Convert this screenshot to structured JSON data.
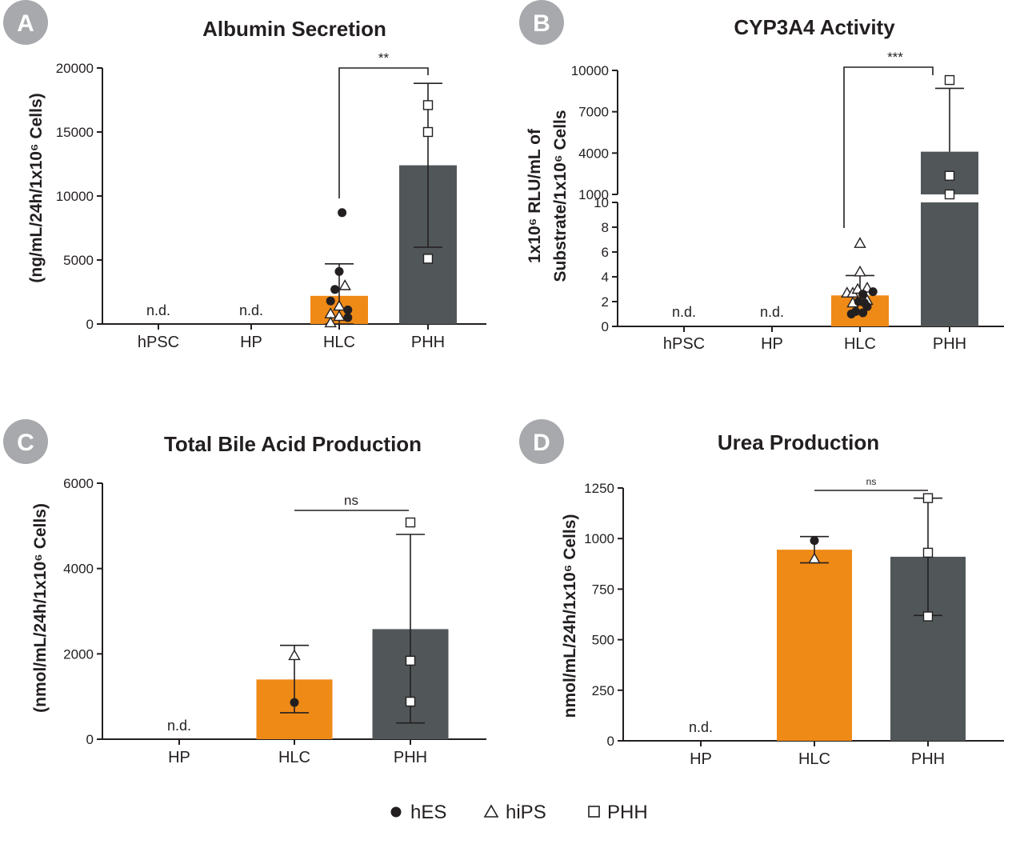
{
  "colors": {
    "orange": "#ef8a17",
    "dark": "#515759",
    "axis": "#231f20",
    "badge": "#a7a9ac"
  },
  "legend": [
    {
      "marker": "circle",
      "label": "hES"
    },
    {
      "marker": "triangle",
      "label": "hiPS"
    },
    {
      "marker": "square",
      "label": "PHH"
    }
  ],
  "nd_label": "n.d.",
  "chart_data": [
    {
      "panel": "A",
      "type": "bar",
      "title": "Albumin Secretion",
      "ylabel": "(ng/mL/24h/1x10⁶ Cells)",
      "categories": [
        "hPSC",
        "HP",
        "HLC",
        "PHH"
      ],
      "ylim": [
        0,
        20000
      ],
      "yticks": [
        0,
        5000,
        10000,
        15000,
        20000
      ],
      "ytick_labels": [
        "0",
        "5000",
        "10000",
        "15000",
        "20000"
      ],
      "bars": [
        {
          "category": "hPSC",
          "value": null,
          "nd": true
        },
        {
          "category": "HP",
          "value": null,
          "nd": true
        },
        {
          "category": "HLC",
          "value": 2200,
          "err_low": 0,
          "err_high": 4700,
          "color": "orange",
          "points": [
            {
              "marker": "circle",
              "value": 8700,
              "dx": 0.1
            },
            {
              "marker": "circle",
              "value": 4100,
              "dx": 0
            },
            {
              "marker": "circle",
              "value": 2700,
              "dx": -0.15
            },
            {
              "marker": "circle",
              "value": 1800,
              "dx": -0.3
            },
            {
              "marker": "circle",
              "value": 1100,
              "dx": 0.3
            },
            {
              "marker": "circle",
              "value": 500,
              "dx": 0.3
            },
            {
              "marker": "triangle",
              "value": 3000,
              "dx": 0.2
            },
            {
              "marker": "triangle",
              "value": 1400,
              "dx": 0
            },
            {
              "marker": "triangle",
              "value": 800,
              "dx": -0.3
            },
            {
              "marker": "triangle",
              "value": 600,
              "dx": 0
            },
            {
              "marker": "triangle",
              "value": 100,
              "dx": -0.3
            }
          ]
        },
        {
          "category": "PHH",
          "value": 12400,
          "err_low": 6000,
          "err_high": 18800,
          "color": "dark",
          "points": [
            {
              "marker": "square",
              "value": 17100,
              "dx": 0
            },
            {
              "marker": "square",
              "value": 15000,
              "dx": 0
            },
            {
              "marker": "square",
              "value": 5100,
              "dx": 0
            }
          ]
        }
      ],
      "significance": {
        "from": "HLC",
        "to": "PHH",
        "label": "**"
      }
    },
    {
      "panel": "B",
      "type": "bar",
      "title": "CYP3A4 Activity",
      "ylabel_lines": [
        "1x10⁶ RLU/mL of",
        "Substrate/1x10⁶ Cells"
      ],
      "categories": [
        "hPSC",
        "HP",
        "HLC",
        "PHH"
      ],
      "y_lower": {
        "ylim": [
          0,
          10
        ],
        "ticks": [
          0,
          2,
          4,
          6,
          8,
          10
        ]
      },
      "y_upper": {
        "ylim": [
          1000,
          10000
        ],
        "ticks": [
          1000,
          4000,
          7000,
          10000
        ]
      },
      "bars": [
        {
          "category": "hPSC",
          "value": null,
          "nd": true
        },
        {
          "category": "HP",
          "value": null,
          "nd": true
        },
        {
          "category": "HLC",
          "value": 2.5,
          "err_low": 2.5,
          "err_high": 4.1,
          "color": "orange",
          "points": [
            {
              "marker": "triangle",
              "value": 6.7,
              "dx": 0
            },
            {
              "marker": "triangle",
              "value": 4.4,
              "dx": 0
            },
            {
              "marker": "triangle",
              "value": 3.1,
              "dx": 0.25
            },
            {
              "marker": "triangle",
              "value": 2.7,
              "dx": -0.45
            },
            {
              "marker": "triangle",
              "value": 2.7,
              "dx": -0.25
            },
            {
              "marker": "triangle",
              "value": 3.0,
              "dx": -0.08
            },
            {
              "marker": "triangle",
              "value": 2.1,
              "dx": 0.25
            },
            {
              "marker": "triangle",
              "value": 1.9,
              "dx": -0.25
            },
            {
              "marker": "circle",
              "value": 2.8,
              "dx": 0.45
            },
            {
              "marker": "circle",
              "value": 2.6,
              "dx": 0.1
            },
            {
              "marker": "circle",
              "value": 2.0,
              "dx": -0.05
            },
            {
              "marker": "circle",
              "value": 1.9,
              "dx": 0.15
            },
            {
              "marker": "circle",
              "value": 1.6,
              "dx": 0.25
            },
            {
              "marker": "circle",
              "value": 1.2,
              "dx": -0.15
            },
            {
              "marker": "circle",
              "value": 1.0,
              "dx": -0.3
            },
            {
              "marker": "circle",
              "value": 1.1,
              "dx": 0.1
            }
          ]
        },
        {
          "category": "PHH",
          "value": 4100,
          "err_low": 4100,
          "err_high": 8700,
          "color": "dark",
          "points": [
            {
              "marker": "square",
              "value": 9300,
              "dx": 0
            },
            {
              "marker": "square",
              "value": 2350,
              "dx": 0
            },
            {
              "marker": "square",
              "value": 1000,
              "dx": 0
            }
          ]
        }
      ],
      "significance": {
        "from": "HLC",
        "to": "PHH",
        "label": "***"
      }
    },
    {
      "panel": "C",
      "type": "bar",
      "title": "Total Bile Acid Production",
      "ylabel": "(nmol/mL/24h/1x10⁶ Cells)",
      "categories": [
        "HP",
        "HLC",
        "PHH"
      ],
      "ylim": [
        0,
        6000
      ],
      "yticks": [
        0,
        2000,
        4000,
        6000
      ],
      "ytick_labels": [
        "0",
        "2000",
        "4000",
        "6000"
      ],
      "bars": [
        {
          "category": "HP",
          "value": null,
          "nd": true
        },
        {
          "category": "HLC",
          "value": 1400,
          "err_low": 620,
          "err_high": 2200,
          "color": "orange",
          "points": [
            {
              "marker": "triangle",
              "value": 1960,
              "dx": 0
            },
            {
              "marker": "circle",
              "value": 860,
              "dx": 0
            }
          ]
        },
        {
          "category": "PHH",
          "value": 2580,
          "err_low": 380,
          "err_high": 4800,
          "color": "dark",
          "points": [
            {
              "marker": "square",
              "value": 5080,
              "dx": 0
            },
            {
              "marker": "square",
              "value": 1840,
              "dx": 0
            },
            {
              "marker": "square",
              "value": 880,
              "dx": 0
            }
          ]
        }
      ],
      "significance": {
        "from": "HLC",
        "to": "PHH",
        "label": "ns"
      }
    },
    {
      "panel": "D",
      "type": "bar",
      "title": "Urea Production",
      "ylabel": "nmol/mL/24h/1x10⁶ Cells)",
      "categories": [
        "HP",
        "HLC",
        "PHH"
      ],
      "ylim": [
        0,
        1250
      ],
      "yticks": [
        0,
        250,
        500,
        750,
        1000,
        1250
      ],
      "ytick_labels": [
        "0",
        "250",
        "500",
        "750",
        "1000",
        "1250"
      ],
      "bars": [
        {
          "category": "HP",
          "value": null,
          "nd": true
        },
        {
          "category": "HLC",
          "value": 945,
          "err_low": 880,
          "err_high": 1010,
          "color": "orange",
          "points": [
            {
              "marker": "circle",
              "value": 990,
              "dx": 0
            },
            {
              "marker": "triangle",
              "value": 900,
              "dx": 0
            }
          ]
        },
        {
          "category": "PHH",
          "value": 910,
          "err_low": 620,
          "err_high": 1200,
          "color": "dark",
          "points": [
            {
              "marker": "square",
              "value": 1200,
              "dx": 0
            },
            {
              "marker": "square",
              "value": 930,
              "dx": 0
            },
            {
              "marker": "square",
              "value": 615,
              "dx": 0
            }
          ]
        }
      ],
      "significance": {
        "from": "HLC",
        "to": "PHH",
        "label": "ns"
      }
    }
  ]
}
